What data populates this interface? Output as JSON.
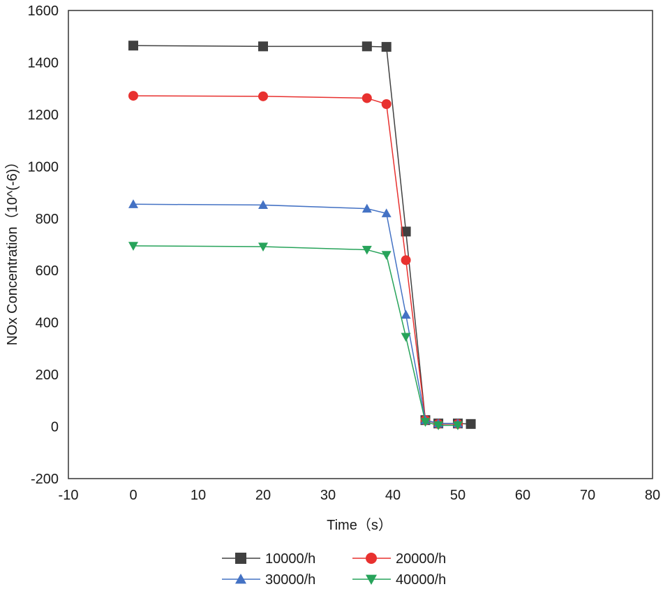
{
  "chart_data": {
    "type": "line",
    "title": "",
    "xlabel": "Time（s）",
    "ylabel": "NOx Concentration（10^(-6)）",
    "xlim": [
      -10,
      80
    ],
    "ylim": [
      -200,
      1600
    ],
    "x_ticks": [
      -10,
      0,
      10,
      20,
      30,
      40,
      50,
      60,
      70,
      80
    ],
    "y_ticks": [
      -200,
      0,
      200,
      400,
      600,
      800,
      1000,
      1200,
      1400,
      1600
    ],
    "grid": false,
    "legend_position": "bottom",
    "series": [
      {
        "name": "10000/h",
        "color": "#404040",
        "marker": "square",
        "x": [
          0,
          20,
          36,
          39,
          42,
          45,
          47,
          50,
          52
        ],
        "y": [
          1465,
          1462,
          1462,
          1460,
          750,
          25,
          12,
          12,
          10
        ]
      },
      {
        "name": "20000/h",
        "color": "#e8312f",
        "marker": "circle",
        "x": [
          0,
          20,
          36,
          39,
          42,
          45,
          47,
          50
        ],
        "y": [
          1272,
          1270,
          1263,
          1240,
          640,
          25,
          10,
          10
        ]
      },
      {
        "name": "30000/h",
        "color": "#4472c4",
        "marker": "triangle-up",
        "x": [
          0,
          20,
          36,
          39,
          42,
          45,
          47,
          50
        ],
        "y": [
          855,
          852,
          838,
          820,
          430,
          25,
          12,
          12
        ]
      },
      {
        "name": "40000/h",
        "color": "#27a35a",
        "marker": "triangle-down",
        "x": [
          0,
          20,
          36,
          39,
          42,
          45,
          47,
          50
        ],
        "y": [
          695,
          692,
          680,
          660,
          345,
          18,
          5,
          5
        ]
      }
    ]
  }
}
